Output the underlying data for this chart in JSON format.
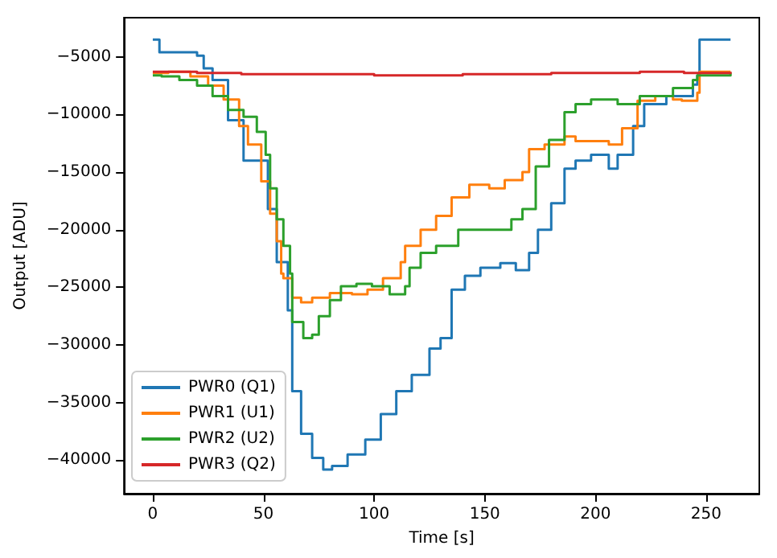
{
  "chart_data": {
    "type": "step",
    "xlabel": "Time [s]",
    "ylabel": "Output [ADU]",
    "xlim": [
      -13,
      274
    ],
    "ylim": [
      -42900,
      -1600
    ],
    "xticks": [
      0,
      50,
      100,
      150,
      200,
      250
    ],
    "yticks": [
      -40000,
      -35000,
      -30000,
      -25000,
      -20000,
      -15000,
      -10000,
      -5000
    ],
    "grid": false,
    "legend": "bottom left",
    "line_style": "solid",
    "marker": "none",
    "series": [
      {
        "name": "PWR0 (Q1)",
        "color": "#1f77b4",
        "x": [
          0,
          3,
          20,
          23,
          27,
          34,
          41,
          52,
          56,
          61,
          63,
          67,
          72,
          77,
          81,
          88,
          96,
          103,
          110,
          117,
          125,
          130,
          135,
          141,
          148,
          157,
          164,
          170,
          174,
          180,
          186,
          191,
          198,
          206,
          210,
          217,
          222,
          232,
          241,
          244,
          246,
          247,
          261
        ],
        "values": [
          -3500,
          -4600,
          -4900,
          -6000,
          -7000,
          -10500,
          -14000,
          -18200,
          -22800,
          -27000,
          -34000,
          -37700,
          -39800,
          -40800,
          -40500,
          -39500,
          -38200,
          -36000,
          -34000,
          -32600,
          -30300,
          -29400,
          -25200,
          -24000,
          -23300,
          -22900,
          -23500,
          -22000,
          -20000,
          -17700,
          -14700,
          -14000,
          -13500,
          -14700,
          -13500,
          -11000,
          -9100,
          -8400,
          -8400,
          -7400,
          -6600,
          -3500,
          -3500
        ]
      },
      {
        "name": "PWR1 (U1)",
        "color": "#ff7f0e",
        "x": [
          0,
          7,
          17,
          25,
          32,
          39,
          43,
          49,
          53,
          56,
          58,
          59,
          63,
          67,
          72,
          80,
          90,
          97,
          104,
          112,
          114,
          121,
          128,
          135,
          143,
          152,
          159,
          167,
          170,
          177,
          186,
          191,
          198,
          206,
          212,
          219,
          227,
          235,
          239,
          246,
          247,
          261
        ],
        "values": [
          -6400,
          -6300,
          -6700,
          -7500,
          -8700,
          -11000,
          -12600,
          -15800,
          -18600,
          -21000,
          -23800,
          -24200,
          -25900,
          -26300,
          -25900,
          -25500,
          -25600,
          -25200,
          -24200,
          -22800,
          -21400,
          -20000,
          -18800,
          -17200,
          -16100,
          -16400,
          -15700,
          -15000,
          -13000,
          -12600,
          -11900,
          -12300,
          -12300,
          -12600,
          -11200,
          -8800,
          -8400,
          -8700,
          -8800,
          -8100,
          -6300,
          -6300
        ]
      },
      {
        "name": "PWR2 (U2)",
        "color": "#2ca02c",
        "x": [
          0,
          4,
          12,
          20,
          27,
          34,
          41,
          47,
          51,
          53,
          56,
          59,
          62,
          63,
          68,
          72,
          75,
          80,
          85,
          92,
          99,
          107,
          114,
          116,
          121,
          128,
          138,
          152,
          162,
          167,
          173,
          179,
          186,
          191,
          198,
          210,
          220,
          235,
          244,
          246,
          261
        ],
        "values": [
          -6600,
          -6700,
          -7000,
          -7500,
          -8400,
          -9600,
          -10200,
          -11500,
          -13500,
          -16400,
          -19100,
          -21400,
          -23800,
          -28000,
          -29400,
          -29100,
          -27500,
          -26100,
          -24900,
          -24700,
          -24900,
          -25600,
          -24900,
          -23300,
          -22000,
          -21400,
          -20000,
          -20000,
          -19100,
          -18200,
          -14500,
          -12200,
          -9800,
          -9100,
          -8700,
          -9100,
          -8400,
          -7700,
          -7000,
          -6600,
          -6400
        ]
      },
      {
        "name": "PWR3 (Q2)",
        "color": "#d62728",
        "x": [
          0,
          20,
          40,
          60,
          80,
          100,
          120,
          140,
          160,
          180,
          200,
          220,
          240,
          261
        ],
        "values": [
          -6300,
          -6400,
          -6500,
          -6500,
          -6500,
          -6600,
          -6600,
          -6500,
          -6500,
          -6400,
          -6400,
          -6300,
          -6400,
          -6300
        ]
      }
    ]
  }
}
